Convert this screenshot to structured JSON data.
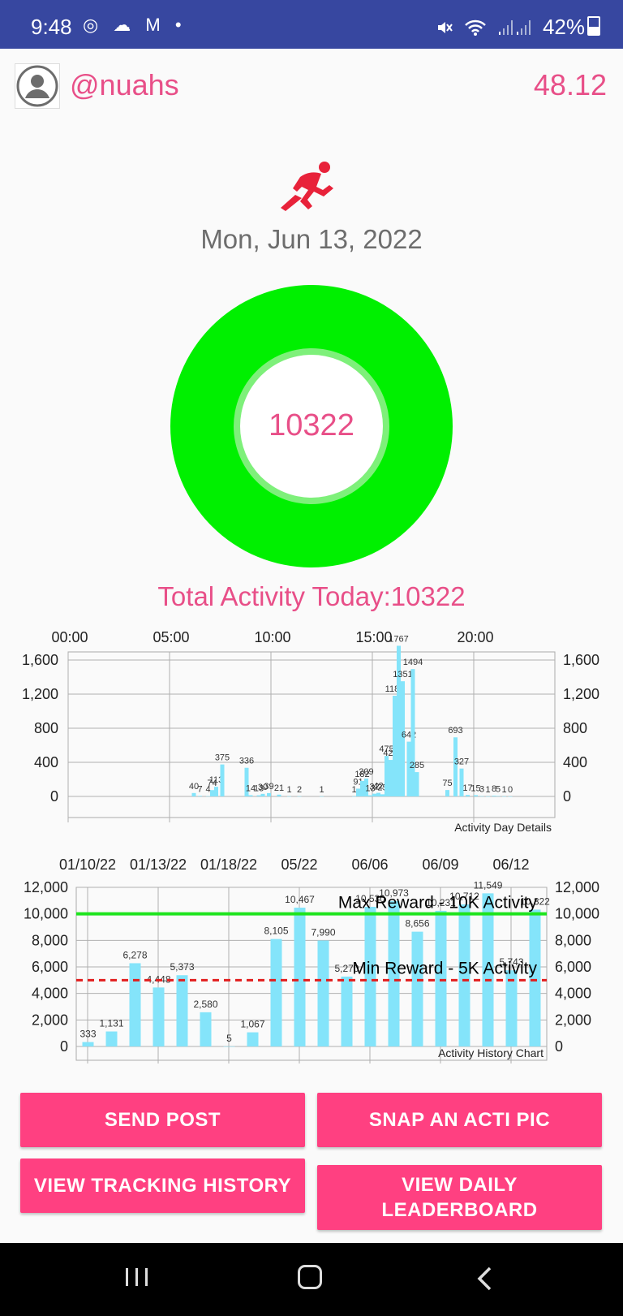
{
  "status_bar": {
    "time": "9:48",
    "left_icons": "◎ ☁ M •",
    "battery": "42%"
  },
  "header": {
    "username": "@nuahs",
    "balance": "48.12"
  },
  "icons": {
    "avatar": "person-avatar-icon",
    "runner": "runner-icon"
  },
  "date": "Mon, Jun 13, 2022",
  "ring": {
    "value": "10322",
    "color": "#00f000"
  },
  "total_activity": "Total Activity Today:10322",
  "colors": {
    "accent": "#e84f88",
    "button": "#ff4081",
    "bar": "#84e4fa",
    "max_line": "#1ee41e",
    "min_line": "#e21e1e"
  },
  "chart_data": [
    {
      "type": "bar",
      "title": "Activity Day Details",
      "x_ticks": [
        "00:00",
        "05:00",
        "10:00",
        "15:00",
        "20:00"
      ],
      "y_ticks": [
        "0",
        "400",
        "800",
        "1,200",
        "1,600"
      ],
      "ylim": [
        0,
        1900
      ],
      "x_range_hours": [
        0,
        24
      ],
      "grid": true,
      "bars": [
        {
          "hour": 6.2,
          "value": 40,
          "label": "40"
        },
        {
          "hour": 6.5,
          "value": 7,
          "label": "7"
        },
        {
          "hour": 6.9,
          "value": 4,
          "label": "4"
        },
        {
          "hour": 7.1,
          "value": 74,
          "label": "74"
        },
        {
          "hour": 7.3,
          "value": 113,
          "label": "113"
        },
        {
          "hour": 7.6,
          "value": 375,
          "label": "375"
        },
        {
          "hour": 8.8,
          "value": 336,
          "label": "336"
        },
        {
          "hour": 9.0,
          "value": 14,
          "label": "14"
        },
        {
          "hour": 9.4,
          "value": 13,
          "label": "13"
        },
        {
          "hour": 9.6,
          "value": 30,
          "label": "30"
        },
        {
          "hour": 9.9,
          "value": 39,
          "label": "39"
        },
        {
          "hour": 10.4,
          "value": 21,
          "label": "21"
        },
        {
          "hour": 10.9,
          "value": 1,
          "label": "1"
        },
        {
          "hour": 11.4,
          "value": 2,
          "label": "2"
        },
        {
          "hour": 12.5,
          "value": 1,
          "label": "1"
        },
        {
          "hour": 14.1,
          "value": 1,
          "label": "1"
        },
        {
          "hour": 14.3,
          "value": 91,
          "label": "91"
        },
        {
          "hour": 14.5,
          "value": 182,
          "label": "182"
        },
        {
          "hour": 14.7,
          "value": 209,
          "label": "209"
        },
        {
          "hour": 14.9,
          "value": 13,
          "label": "13"
        },
        {
          "hour": 15.1,
          "value": 32,
          "label": "32"
        },
        {
          "hour": 15.3,
          "value": 42,
          "label": "42"
        },
        {
          "hour": 15.5,
          "value": 25,
          "label": "25"
        },
        {
          "hour": 15.7,
          "value": 475,
          "label": "475"
        },
        {
          "hour": 15.9,
          "value": 428,
          "label": "428"
        },
        {
          "hour": 16.1,
          "value": 1181,
          "label": "1181"
        },
        {
          "hour": 16.3,
          "value": 1767,
          "label": "1767"
        },
        {
          "hour": 16.5,
          "value": 1351,
          "label": "1351"
        },
        {
          "hour": 16.8,
          "value": 642,
          "label": "642"
        },
        {
          "hour": 17.0,
          "value": 1494,
          "label": "1494"
        },
        {
          "hour": 17.2,
          "value": 285,
          "label": "285"
        },
        {
          "hour": 18.7,
          "value": 75,
          "label": "75"
        },
        {
          "hour": 19.1,
          "value": 693,
          "label": "693"
        },
        {
          "hour": 19.4,
          "value": 327,
          "label": "327"
        },
        {
          "hour": 19.7,
          "value": 17,
          "label": "17"
        },
        {
          "hour": 20.1,
          "value": 15,
          "label": "15"
        },
        {
          "hour": 20.4,
          "value": 3,
          "label": "3"
        },
        {
          "hour": 20.7,
          "value": 1,
          "label": "1"
        },
        {
          "hour": 21.0,
          "value": 8,
          "label": "8"
        },
        {
          "hour": 21.2,
          "value": 5,
          "label": "5"
        },
        {
          "hour": 21.5,
          "value": 1,
          "label": "1"
        },
        {
          "hour": 21.8,
          "value": 0,
          "label": "0"
        }
      ]
    },
    {
      "type": "bar",
      "title": "Activity History Chart",
      "x_ticks": [
        "01/10/22",
        "01/13/22",
        "01/18/22",
        "05/22",
        "06/06",
        "06/09",
        "06/12"
      ],
      "y_ticks": [
        "0",
        "2,000",
        "4,000",
        "6,000",
        "8,000",
        "10,000",
        "12,000"
      ],
      "ylim": [
        0,
        12000
      ],
      "grid": true,
      "values": [
        333,
        1131,
        6278,
        4448,
        5373,
        2580,
        5,
        1067,
        8105,
        10467,
        7990,
        5270,
        10530,
        10973,
        8656,
        10231,
        10712,
        11549,
        5743,
        10322
      ],
      "value_labels": [
        "333",
        "1,131",
        "6,278",
        "4,448",
        "5,373",
        "2,580",
        "5",
        "1,067",
        "8,105",
        "10,467",
        "7,990",
        "5,270",
        "10,530",
        "10,973",
        "8,656",
        "10,231",
        "10,712",
        "11,549",
        "5,743",
        "10,322"
      ],
      "reference_lines": [
        {
          "label": "Max Reward - 10K Activity",
          "value": 10000,
          "style": "solid"
        },
        {
          "label": "Min Reward - 5K Activity",
          "value": 5000,
          "style": "dashed"
        }
      ]
    }
  ],
  "buttons": {
    "send_post": "SEND POST",
    "snap_pic": "SNAP AN ACTI PIC",
    "view_history": "VIEW TRACKING HISTORY",
    "view_leaderboard_line1": "VIEW DAILY",
    "view_leaderboard_line2": "LEADERBOARD"
  },
  "nav": {
    "recent": "recent-apps-icon",
    "home": "home-icon",
    "back": "back-icon"
  }
}
